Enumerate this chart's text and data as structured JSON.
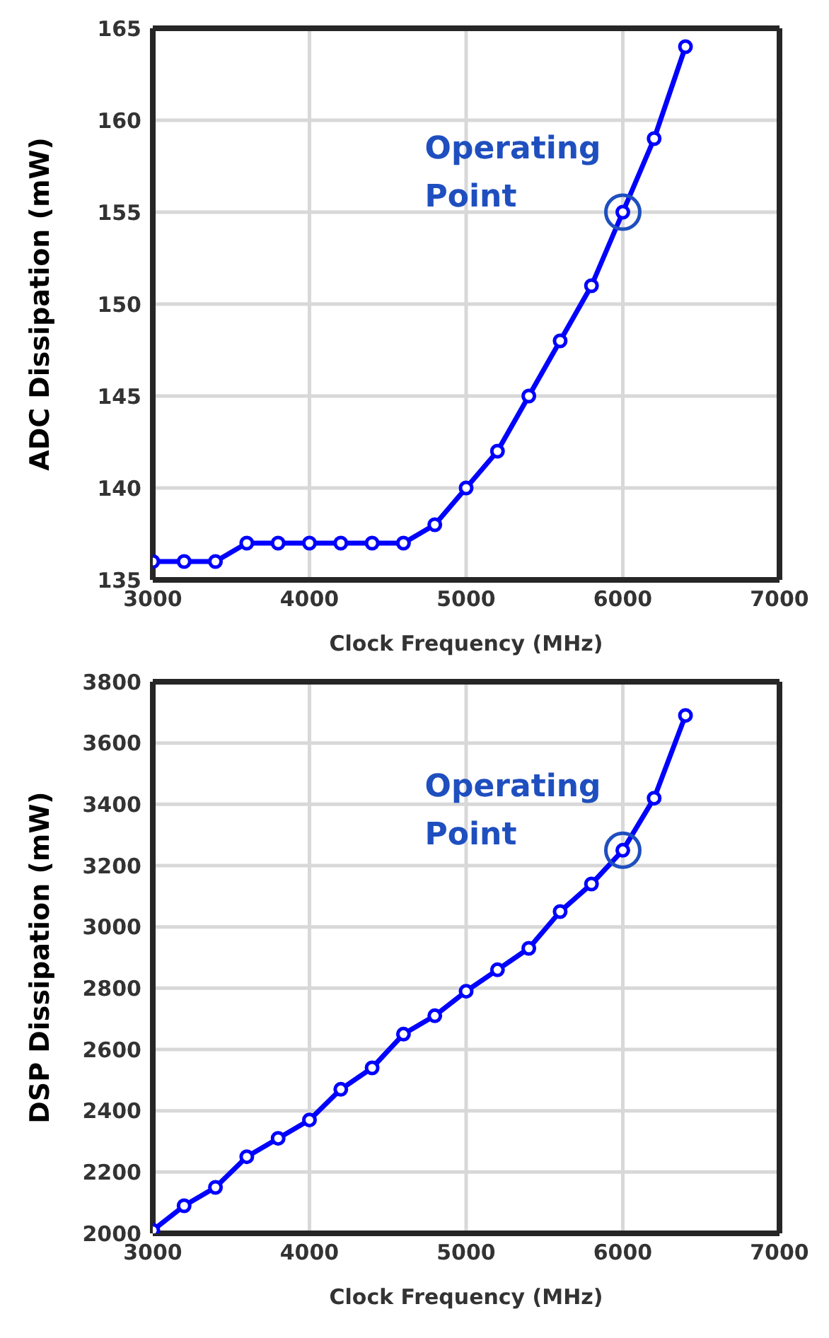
{
  "chart_data": [
    {
      "type": "line",
      "xlabel": "Clock Frequency (MHz)",
      "ylabel": "ADC Dissipation (mW)",
      "x": [
        3000,
        3200,
        3400,
        3600,
        3800,
        4000,
        4200,
        4400,
        4600,
        4800,
        5000,
        5200,
        5400,
        5600,
        5800,
        6000,
        6200,
        6400
      ],
      "series": [
        {
          "color": "#0000ff",
          "values": [
            136,
            136,
            136,
            137,
            137,
            137,
            137,
            137,
            137,
            138,
            140,
            142,
            145,
            148,
            151,
            155,
            159,
            164
          ]
        }
      ],
      "xlim": [
        3000,
        7000
      ],
      "xticks": [
        3000,
        4000,
        5000,
        6000,
        7000
      ],
      "ylim": [
        135,
        165
      ],
      "yticks": [
        135,
        140,
        145,
        150,
        155,
        160,
        165
      ],
      "grid": true,
      "marker": "circle",
      "line_style": "solid",
      "annotations": [
        {
          "text": "Operating\nPoint",
          "x": 6000,
          "y": 155
        }
      ]
    },
    {
      "type": "line",
      "xlabel": "Clock Frequency (MHz)",
      "ylabel": "DSP Dissipation (mW)",
      "x": [
        3000,
        3200,
        3400,
        3600,
        3800,
        4000,
        4200,
        4400,
        4600,
        4800,
        5000,
        5200,
        5400,
        5600,
        5800,
        6000,
        6200,
        6400
      ],
      "series": [
        {
          "color": "#0000ff",
          "values": [
            2010,
            2090,
            2150,
            2250,
            2310,
            2370,
            2470,
            2540,
            2650,
            2710,
            2790,
            2860,
            2930,
            3050,
            3140,
            3250,
            3420,
            3690
          ]
        }
      ],
      "xlim": [
        3000,
        7000
      ],
      "xticks": [
        3000,
        4000,
        5000,
        6000,
        7000
      ],
      "ylim": [
        2000,
        3800
      ],
      "yticks": [
        2000,
        2200,
        2400,
        2600,
        2800,
        3000,
        3200,
        3400,
        3600,
        3800
      ],
      "grid": true,
      "marker": "circle",
      "line_style": "solid",
      "annotations": [
        {
          "text": "Operating\nPoint",
          "x": 6000,
          "y": 3250
        }
      ]
    }
  ]
}
